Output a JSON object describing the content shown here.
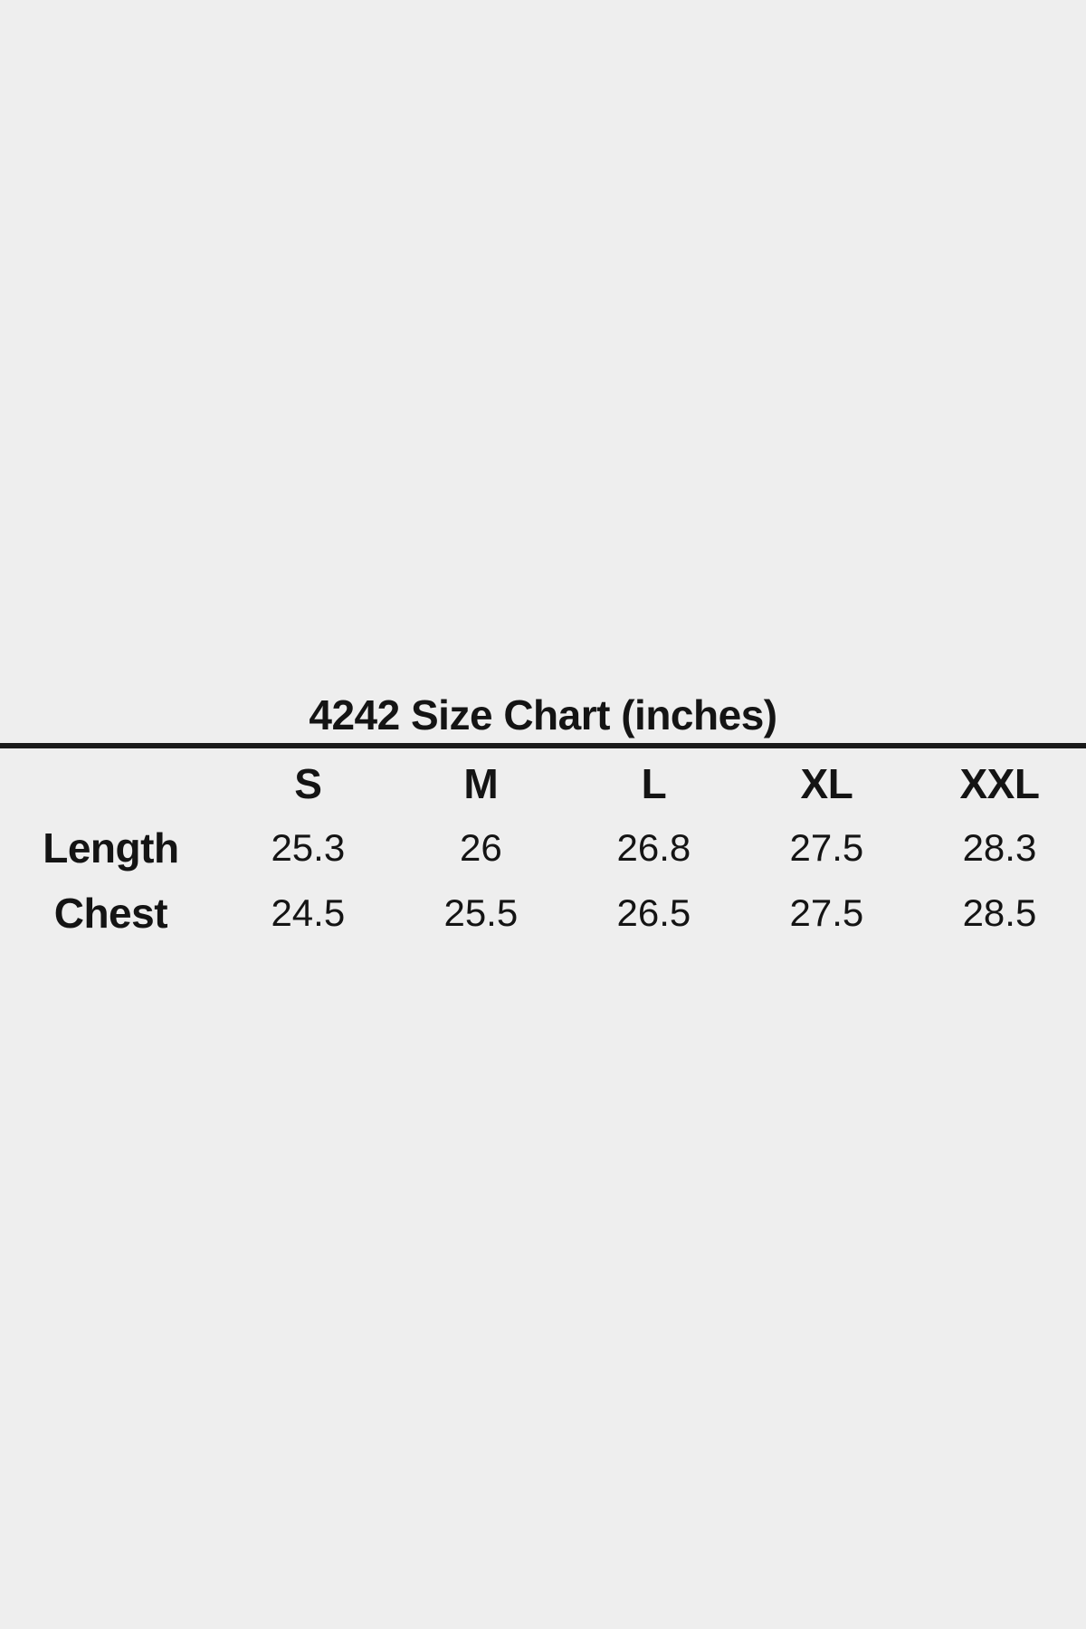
{
  "page": {
    "background_color": "#eeeeee",
    "text_color": "#141414",
    "divider_color": "#1a1a1a"
  },
  "size_chart": {
    "title": "4242 Size Chart (inches)",
    "columns": [
      "S",
      "M",
      "L",
      "XL",
      "XXL"
    ],
    "rows": [
      {
        "label": "Length",
        "values": [
          "25.3",
          "26",
          "26.8",
          "27.5",
          "28.3"
        ]
      },
      {
        "label": "Chest",
        "values": [
          "24.5",
          "25.5",
          "26.5",
          "27.5",
          "28.5"
        ]
      }
    ]
  },
  "chart_data": {
    "type": "table",
    "title": "4242 Size Chart (inches)",
    "unit": "inches",
    "columns": [
      "S",
      "M",
      "L",
      "XL",
      "XXL"
    ],
    "series": [
      {
        "name": "Length",
        "values": [
          25.3,
          26,
          26.8,
          27.5,
          28.3
        ]
      },
      {
        "name": "Chest",
        "values": [
          24.5,
          25.5,
          26.5,
          27.5,
          28.5
        ]
      }
    ]
  }
}
